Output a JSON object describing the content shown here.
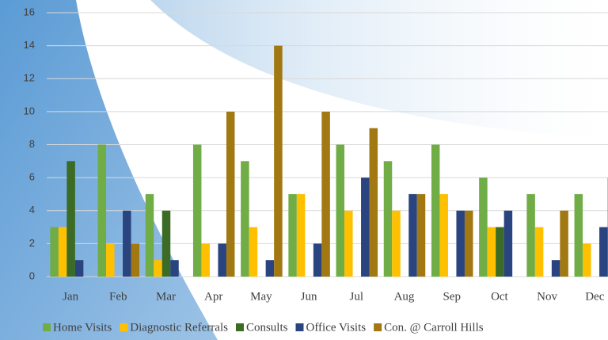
{
  "chart_data": {
    "type": "bar",
    "categories": [
      "Jan",
      "Feb",
      "Mar",
      "Apr",
      "May",
      "Jun",
      "Jul",
      "Aug",
      "Sep",
      "Oct",
      "Nov",
      "Dec"
    ],
    "series": [
      {
        "name": "Home Visits",
        "color": "#70ad47",
        "values": [
          3,
          8,
          5,
          8,
          7,
          5,
          8,
          7,
          8,
          6,
          5,
          5
        ]
      },
      {
        "name": "Diagnostic Referrals",
        "color": "#ffc000",
        "values": [
          3,
          2,
          1,
          2,
          3,
          5,
          4,
          4,
          5,
          3,
          3,
          2
        ]
      },
      {
        "name": "Consults",
        "color": "#3b6b25",
        "values": [
          7,
          0,
          4,
          0,
          0,
          0,
          0,
          0,
          0,
          3,
          0,
          0
        ]
      },
      {
        "name": "Office Visits",
        "color": "#2a4480",
        "values": [
          1,
          4,
          1,
          2,
          1,
          2,
          6,
          5,
          4,
          4,
          1,
          3
        ]
      },
      {
        "name": "Con. @ Carroll Hills",
        "color": "#a17812",
        "values": [
          0,
          2,
          0,
          10,
          14,
          10,
          9,
          5,
          4,
          0,
          4,
          6
        ]
      }
    ],
    "ylim": [
      0,
      16
    ],
    "yticks": [
      0,
      2,
      4,
      6,
      8,
      10,
      12,
      14,
      16
    ],
    "grid": true,
    "legend": "bottom"
  }
}
